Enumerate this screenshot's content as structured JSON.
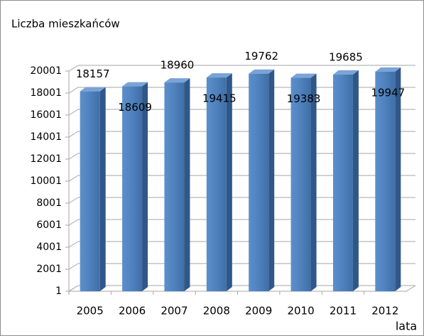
{
  "chart_data": {
    "type": "bar",
    "title": "Liczba mieszkańców",
    "x_label": "lata",
    "categories": [
      "2005",
      "2006",
      "2007",
      "2008",
      "2009",
      "2010",
      "2011",
      "2012"
    ],
    "values": [
      18157,
      18609,
      18960,
      19415,
      19762,
      19383,
      19685,
      19947
    ],
    "color": "#4f81bd",
    "ylim": [
      1,
      20001
    ],
    "yticks": [
      1,
      2001,
      4001,
      6001,
      8001,
      10001,
      12001,
      14001,
      16001,
      18001,
      20001
    ],
    "grid": true
  }
}
